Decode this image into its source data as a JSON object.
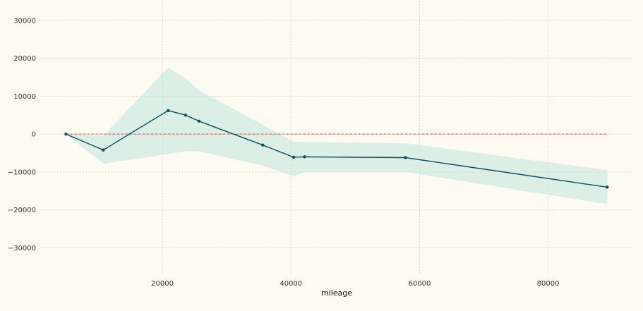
{
  "chart_data": {
    "type": "line",
    "title": "",
    "xlabel": "mileage",
    "ylabel": "",
    "xlim": [
      1000,
      93000
    ],
    "ylim": [
      -37000,
      35000
    ],
    "xticks": [
      20000,
      40000,
      60000,
      80000
    ],
    "yticks": [
      -30000,
      -20000,
      -10000,
      0,
      10000,
      20000,
      30000
    ],
    "xtick_labels": [
      "20000",
      "40000",
      "60000",
      "80000"
    ],
    "ytick_labels": [
      "−30000",
      "−20000",
      "−10000",
      "0",
      "10000",
      "20000",
      "30000"
    ],
    "grid": true,
    "series": [
      {
        "role": "estimate",
        "color": "#0f4c5c",
        "x": [
          5000,
          10800,
          20900,
          23600,
          25700,
          35600,
          40400,
          42100,
          57800,
          89200
        ],
        "y": [
          0,
          -4200,
          6200,
          5000,
          3400,
          -2900,
          -6100,
          -6000,
          -6200,
          -14000
        ]
      }
    ],
    "band": {
      "color": "#bfe6dc",
      "x": [
        5000,
        10800,
        20900,
        23600,
        25700,
        35600,
        40400,
        42100,
        57800,
        89200
      ],
      "lower": [
        0,
        -7800,
        -5300,
        -4500,
        -4600,
        -8300,
        -11200,
        -10000,
        -10000,
        -18500
      ],
      "upper": [
        0,
        -400,
        17600,
        14700,
        11500,
        2500,
        -2000,
        -2100,
        -2400,
        -9500
      ]
    },
    "reference_line": {
      "y": 0,
      "color": "#c8553d",
      "style": "dashed",
      "x_start": 5000,
      "x_end": 89200
    }
  }
}
